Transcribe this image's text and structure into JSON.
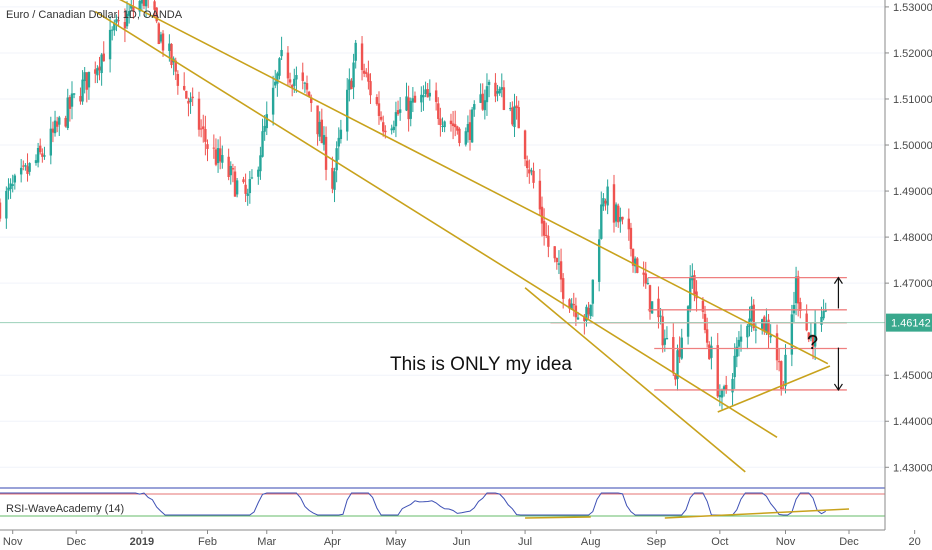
{
  "chart_data": {
    "type": "candlestick",
    "title": "Euro / Canadian Dollar, 1D, OANDA",
    "price_axis": {
      "ticks": [
        "1.53000",
        "1.52000",
        "1.51000",
        "1.50000",
        "1.49000",
        "1.48000",
        "1.47000",
        "1.45000",
        "1.44000",
        "1.43000"
      ],
      "tick_values": [
        1.53,
        1.52,
        1.51,
        1.5,
        1.49,
        1.48,
        1.47,
        1.45,
        1.44,
        1.43
      ],
      "range": [
        1.4255,
        1.5315
      ],
      "current_price": 1.46142,
      "current_price_label": "1.46142"
    },
    "time_axis": {
      "labels": [
        "Nov",
        "Dec",
        "2019",
        "Feb",
        "Mar",
        "Apr",
        "May",
        "Jun",
        "Jul",
        "Aug",
        "Sep",
        "Oct",
        "Nov",
        "Dec",
        "20"
      ],
      "bold_label": "2019",
      "start": "2018-10-26",
      "end": "2019-12-18"
    },
    "price_path": [
      {
        "date": "2018-10-26",
        "close": 1.487
      },
      {
        "date": "2018-11-15",
        "close": 1.498
      },
      {
        "date": "2018-12-03",
        "close": 1.512
      },
      {
        "date": "2018-12-20",
        "close": 1.525
      },
      {
        "date": "2019-01-02",
        "close": 1.532
      },
      {
        "date": "2019-01-15",
        "close": 1.518
      },
      {
        "date": "2019-02-01",
        "close": 1.5
      },
      {
        "date": "2019-02-20",
        "close": 1.488
      },
      {
        "date": "2019-03-08",
        "close": 1.518
      },
      {
        "date": "2019-03-22",
        "close": 1.51
      },
      {
        "date": "2019-04-01",
        "close": 1.492
      },
      {
        "date": "2019-04-12",
        "close": 1.52
      },
      {
        "date": "2019-04-25",
        "close": 1.505
      },
      {
        "date": "2019-05-15",
        "close": 1.51
      },
      {
        "date": "2019-06-03",
        "close": 1.502
      },
      {
        "date": "2019-06-15",
        "close": 1.514
      },
      {
        "date": "2019-06-28",
        "close": 1.505
      },
      {
        "date": "2019-07-12",
        "close": 1.478
      },
      {
        "date": "2019-07-20",
        "close": 1.468
      },
      {
        "date": "2019-07-31",
        "close": 1.462
      },
      {
        "date": "2019-08-07",
        "close": 1.49
      },
      {
        "date": "2019-08-20",
        "close": 1.478
      },
      {
        "date": "2019-08-30",
        "close": 1.465
      },
      {
        "date": "2019-09-10",
        "close": 1.452
      },
      {
        "date": "2019-09-18",
        "close": 1.471
      },
      {
        "date": "2019-09-28",
        "close": 1.452
      },
      {
        "date": "2019-10-02",
        "close": 1.444
      },
      {
        "date": "2019-10-15",
        "close": 1.464
      },
      {
        "date": "2019-10-25",
        "close": 1.46
      },
      {
        "date": "2019-10-31",
        "close": 1.448
      },
      {
        "date": "2019-11-06",
        "close": 1.47
      },
      {
        "date": "2019-11-12",
        "close": 1.458
      },
      {
        "date": "2019-11-20",
        "close": 1.4614
      }
    ],
    "trendlines": [
      {
        "name": "channel-upper",
        "from": {
          "date": "2018-12-20",
          "price": 1.532
        },
        "to": {
          "date": "2019-11-21",
          "price": 1.4525
        }
      },
      {
        "name": "channel-middle",
        "from": {
          "date": "2018-12-10",
          "price": 1.529
        },
        "to": {
          "date": "2019-10-28",
          "price": 1.4365
        }
      },
      {
        "name": "channel-lower",
        "from": {
          "date": "2019-07-01",
          "price": 1.469
        },
        "to": {
          "date": "2019-10-13",
          "price": 1.429
        }
      },
      {
        "name": "rising-support",
        "from": {
          "date": "2019-09-30",
          "price": 1.442
        },
        "to": {
          "date": "2019-11-22",
          "price": 1.452
        }
      }
    ],
    "horizontal_levels": [
      {
        "price": 1.4712,
        "from": "2019-08-28",
        "to": "2019-11-30"
      },
      {
        "price": 1.4642,
        "from": "2019-08-28",
        "to": "2019-11-30"
      },
      {
        "price": 1.4614,
        "from": "2019-07-13",
        "to": "2019-11-30"
      },
      {
        "price": 1.4558,
        "from": "2019-08-31",
        "to": "2019-11-30"
      },
      {
        "price": 1.4468,
        "from": "2019-08-31",
        "to": "2019-11-30"
      }
    ],
    "annotations": {
      "note": "This is ONLY my idea",
      "question": "?"
    },
    "indicator": {
      "label": "RSI-WaveAcademy (14)",
      "upper_level_color": "#e57373",
      "lower_level_color": "#66bb6a",
      "line_color": "#3f51b5"
    },
    "colors": {
      "up": "#26a69a",
      "down": "#ef5350",
      "trendline": "#c8a21c",
      "level": "#ef7f7f",
      "price_line": "#9bd1b9",
      "price_badge": "#39a88d"
    }
  }
}
